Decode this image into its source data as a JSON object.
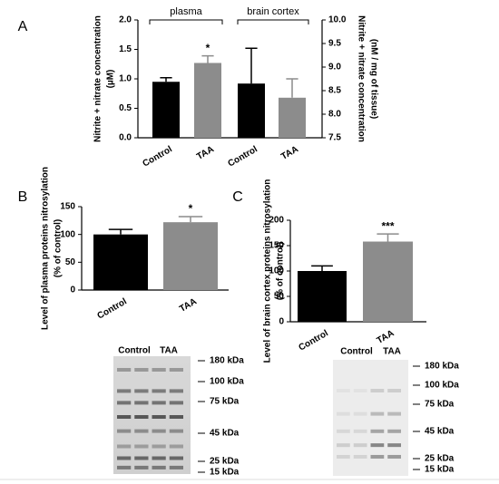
{
  "chart_data": [
    {
      "type": "bar",
      "panel": "A",
      "categories": [
        "Control",
        "TAA",
        "Control",
        "TAA"
      ],
      "group_labels": [
        "plasma",
        "brain cortex"
      ],
      "colors": [
        "#000000",
        "#8c8c8c",
        "#000000",
        "#8c8c8c"
      ],
      "series": [
        {
          "values": [
            0.95,
            1.27,
            null,
            null
          ],
          "errors": [
            0.07,
            0.12,
            null,
            null
          ]
        },
        {
          "axis": "y2",
          "values": [
            null,
            null,
            8.65,
            8.35
          ],
          "errors": [
            null,
            null,
            0.75,
            0.4
          ]
        }
      ],
      "significance": [
        null,
        "*",
        null,
        null
      ],
      "ylabel": [
        "Nitrite + nitrate concentration",
        "(µM)"
      ],
      "y2label": [
        "Nitrite + nitrate concentration",
        "(nM / mg of tissue)"
      ],
      "ylim": [
        0,
        2.0
      ],
      "yticks": [
        {
          "value": 0,
          "label": "0.0"
        },
        0.5,
        {
          "value": 1,
          "label": "1.0"
        },
        1.5,
        {
          "value": 2,
          "label": "2.0"
        }
      ],
      "y2lim": [
        7.5,
        10.0
      ],
      "y2ticks": [
        7.5,
        {
          "value": 8,
          "label": "8.0"
        },
        8.5,
        {
          "value": 9,
          "label": "9.0"
        },
        9.5,
        {
          "value": 10,
          "label": "10.0"
        }
      ]
    },
    {
      "type": "bar",
      "panel": "B",
      "categories": [
        "Control",
        "TAA"
      ],
      "colors": [
        "#000000",
        "#8c8c8c"
      ],
      "series": [
        {
          "values": [
            100,
            122
          ],
          "errors": [
            9,
            10
          ]
        }
      ],
      "significance": [
        null,
        "*"
      ],
      "ylabel": [
        "Level of plasma proteins nitrosylation",
        "(% of control)"
      ],
      "ylim": [
        0,
        150
      ],
      "yticks": [
        0,
        50,
        100,
        150
      ],
      "blot": {
        "lanes": [
          "Control",
          "TAA"
        ],
        "markers": [
          "180 kDa",
          "100 kDa",
          "75 kDa",
          "45 kDa",
          "25 kDa",
          "15 kDa"
        ]
      }
    },
    {
      "type": "bar",
      "panel": "C",
      "categories": [
        "Control",
        "TAA"
      ],
      "colors": [
        "#000000",
        "#8c8c8c"
      ],
      "series": [
        {
          "values": [
            100,
            158
          ],
          "errors": [
            10,
            15
          ]
        }
      ],
      "significance": [
        null,
        "***"
      ],
      "ylabel": [
        "Level of brain cortex proteins nitrosylation",
        "(% of control)"
      ],
      "ylim": [
        0,
        200
      ],
      "yticks": [
        0,
        50,
        100,
        150,
        200
      ],
      "blot": {
        "lanes": [
          "Control",
          "TAA"
        ],
        "markers": [
          "180 kDa",
          "100 kDa",
          "75 kDa",
          "45 kDa",
          "25 kDa",
          "15 kDa"
        ]
      }
    }
  ]
}
